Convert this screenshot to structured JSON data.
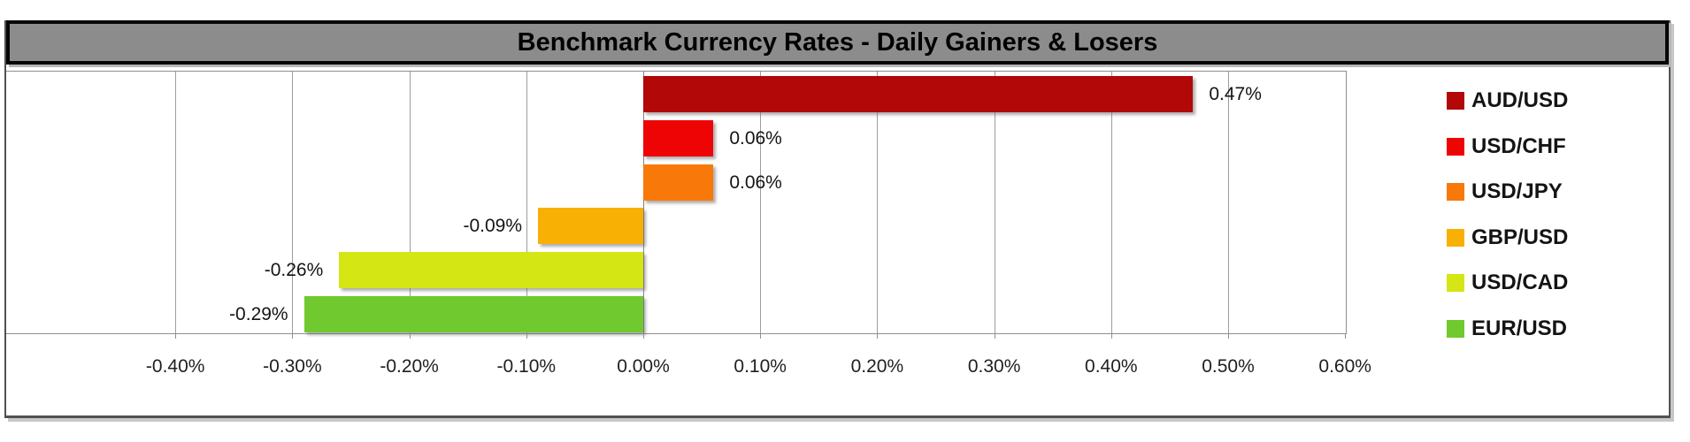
{
  "chart_data": {
    "type": "bar",
    "orientation": "horizontal",
    "title": "Benchmark Currency Rates - Daily Gainers & Losers",
    "categories": [
      "AUD/USD",
      "USD/CHF",
      "USD/JPY",
      "GBP/USD",
      "USD/CAD",
      "EUR/USD"
    ],
    "values": [
      0.47,
      0.06,
      0.06,
      -0.09,
      -0.26,
      -0.29
    ],
    "data_labels": [
      "0.47%",
      "0.06%",
      "0.06%",
      "-0.09%",
      "-0.26%",
      "-0.29%"
    ],
    "bar_colors": [
      "#B20808",
      "#EE0404",
      "#F9780A",
      "#F9B005",
      "#D4E614",
      "#70C92E"
    ],
    "xlabel": "",
    "ylabel": "",
    "xlim": [
      -0.545,
      0.6
    ],
    "x_tick_labels": [
      "-0.40%",
      "-0.30%",
      "-0.20%",
      "-0.10%",
      "0.00%",
      "0.10%",
      "0.20%",
      "0.30%",
      "0.40%",
      "0.50%",
      "0.60%"
    ],
    "x_tick_values": [
      -0.4,
      -0.3,
      -0.2,
      -0.1,
      0.0,
      0.1,
      0.2,
      0.3,
      0.4,
      0.5,
      0.6
    ],
    "grid": true,
    "legend_position": "right",
    "legend_entries": [
      "AUD/USD",
      "USD/CHF",
      "USD/JPY",
      "GBP/USD",
      "USD/CAD",
      "EUR/USD"
    ],
    "colors": {
      "title_background": "#8C8C8C",
      "title_text": "#000000",
      "gridline": "#9D9D9D",
      "plot_border": "#8F8F8F",
      "frame_border": "#515151"
    }
  }
}
